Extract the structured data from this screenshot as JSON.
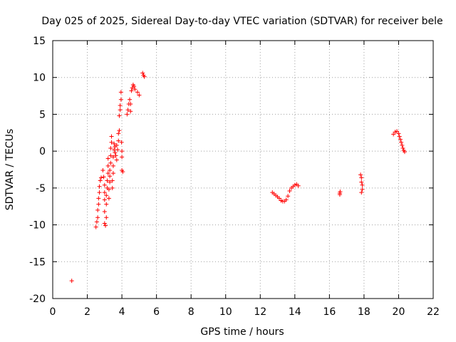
{
  "chart_data": {
    "type": "scatter",
    "title": "Day 025 of 2025, Sidereal Day-to-day VTEC variation (SDTVAR) for receiver bele",
    "xlabel": "GPS time / hours",
    "ylabel": "SDTVAR / TECUs",
    "xlim": [
      0,
      22
    ],
    "ylim": [
      -20,
      15
    ],
    "x_ticks": [
      0,
      2,
      4,
      6,
      8,
      10,
      12,
      14,
      16,
      18,
      20,
      22
    ],
    "y_ticks": [
      -20,
      -15,
      -10,
      -5,
      0,
      5,
      10,
      15
    ],
    "x_tick_labels": [
      "0",
      "2",
      "4",
      "6",
      "8",
      "10",
      "12",
      "14",
      "16",
      "18",
      "20",
      "22"
    ],
    "y_tick_labels": [
      "-20",
      "-15",
      "-10",
      "-5",
      "0",
      "5",
      "10",
      "15"
    ],
    "grid": true,
    "legend": "none",
    "marker": "plus",
    "marker_color": "#ff0000",
    "series": [
      {
        "name": "SDTVAR",
        "points": [
          [
            1.1,
            -17.6
          ],
          [
            2.5,
            -10.3
          ],
          [
            2.55,
            -9.6
          ],
          [
            2.6,
            -9.0
          ],
          [
            2.6,
            -8.0
          ],
          [
            2.65,
            -7.2
          ],
          [
            2.65,
            -6.4
          ],
          [
            2.7,
            -5.6
          ],
          [
            2.7,
            -4.8
          ],
          [
            2.75,
            -4.0
          ],
          [
            2.8,
            -3.6
          ],
          [
            2.9,
            -2.6
          ],
          [
            2.95,
            -3.5
          ],
          [
            3.0,
            -4.6
          ],
          [
            3.0,
            -5.6
          ],
          [
            3.0,
            -6.6
          ],
          [
            3.0,
            -8.2
          ],
          [
            3.0,
            -9.8
          ],
          [
            3.05,
            -10.1
          ],
          [
            3.1,
            -9.0
          ],
          [
            3.1,
            -7.2
          ],
          [
            3.1,
            -6.0
          ],
          [
            3.15,
            -5.0
          ],
          [
            3.15,
            -4.0
          ],
          [
            3.2,
            -3.0
          ],
          [
            3.2,
            -2.0
          ],
          [
            3.2,
            -1.0
          ],
          [
            3.25,
            -6.4
          ],
          [
            3.25,
            -5.2
          ],
          [
            3.3,
            -4.2
          ],
          [
            3.3,
            -3.4
          ],
          [
            3.3,
            -2.6
          ],
          [
            3.35,
            -1.6
          ],
          [
            3.35,
            -0.6
          ],
          [
            3.35,
            0.4
          ],
          [
            3.4,
            1.2
          ],
          [
            3.4,
            2.0
          ],
          [
            3.45,
            -5.0
          ],
          [
            3.45,
            -4.0
          ],
          [
            3.5,
            -3.0
          ],
          [
            3.5,
            -2.0
          ],
          [
            3.5,
            -0.8
          ],
          [
            3.55,
            0.2
          ],
          [
            3.55,
            1.0
          ],
          [
            3.6,
            0.6
          ],
          [
            3.6,
            -0.2
          ],
          [
            3.65,
            -0.6
          ],
          [
            3.7,
            -1.2
          ],
          [
            3.7,
            0.8
          ],
          [
            3.75,
            0.2
          ],
          [
            3.8,
            1.4
          ],
          [
            3.8,
            2.4
          ],
          [
            3.85,
            2.8
          ],
          [
            3.85,
            4.8
          ],
          [
            3.9,
            5.6
          ],
          [
            3.9,
            6.2
          ],
          [
            3.95,
            7.0
          ],
          [
            3.95,
            8.0
          ],
          [
            3.98,
            1.2
          ],
          [
            4.0,
            0.0
          ],
          [
            4.0,
            -0.8
          ],
          [
            4.0,
            -2.6
          ],
          [
            4.05,
            -2.8
          ],
          [
            4.3,
            5.0
          ],
          [
            4.35,
            5.6
          ],
          [
            4.4,
            6.4
          ],
          [
            4.45,
            7.0
          ],
          [
            4.5,
            6.4
          ],
          [
            4.5,
            5.4
          ],
          [
            4.55,
            8.2
          ],
          [
            4.6,
            8.6
          ],
          [
            4.65,
            9.0
          ],
          [
            4.7,
            8.8
          ],
          [
            4.75,
            8.4
          ],
          [
            4.9,
            8.0
          ],
          [
            5.0,
            7.6
          ],
          [
            5.2,
            10.6
          ],
          [
            5.25,
            10.3
          ],
          [
            5.3,
            10.1
          ],
          [
            12.7,
            -5.6
          ],
          [
            12.8,
            -5.8
          ],
          [
            12.9,
            -6.0
          ],
          [
            13.0,
            -6.2
          ],
          [
            13.1,
            -6.4
          ],
          [
            13.2,
            -6.7
          ],
          [
            13.3,
            -6.8
          ],
          [
            13.4,
            -6.8
          ],
          [
            13.5,
            -6.6
          ],
          [
            13.6,
            -6.1
          ],
          [
            13.7,
            -5.4
          ],
          [
            13.8,
            -5.0
          ],
          [
            13.9,
            -4.8
          ],
          [
            14.0,
            -4.6
          ],
          [
            14.1,
            -4.5
          ],
          [
            14.2,
            -4.7
          ],
          [
            16.6,
            -5.7
          ],
          [
            16.6,
            -5.9
          ],
          [
            16.62,
            -5.5
          ],
          [
            17.8,
            -3.2
          ],
          [
            17.85,
            -3.6
          ],
          [
            17.85,
            -4.2
          ],
          [
            17.9,
            -4.6
          ],
          [
            17.9,
            -5.2
          ],
          [
            17.85,
            -5.6
          ],
          [
            19.7,
            2.3
          ],
          [
            19.8,
            2.6
          ],
          [
            19.9,
            2.7
          ],
          [
            20.0,
            2.4
          ],
          [
            20.05,
            2.0
          ],
          [
            20.1,
            1.6
          ],
          [
            20.15,
            1.2
          ],
          [
            20.2,
            0.8
          ],
          [
            20.25,
            0.4
          ],
          [
            20.3,
            0.1
          ],
          [
            20.35,
            -0.1
          ]
        ]
      }
    ]
  }
}
